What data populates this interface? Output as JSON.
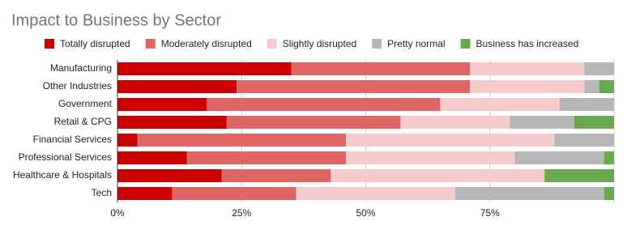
{
  "chart_data": {
    "type": "stacked-barh",
    "title": "Impact to Business by Sector",
    "categories": [
      "Manufacturing",
      "Other Industries",
      "Government",
      "Retail & CPG",
      "Financial Services",
      "Professional Services",
      "Healthcare & Hospitals",
      "Tech"
    ],
    "series": [
      {
        "name": "Totally disrupted",
        "color": "#cc0000",
        "values": [
          35,
          24,
          18,
          22,
          4,
          14,
          21,
          11
        ]
      },
      {
        "name": "Moderately disrupted",
        "color": "#e06666",
        "values": [
          36,
          47,
          47,
          35,
          42,
          32,
          22,
          25
        ]
      },
      {
        "name": "Slightly disrupted",
        "color": "#f4cccc",
        "values": [
          23,
          23,
          24,
          22,
          42,
          34,
          43,
          32
        ]
      },
      {
        "name": "Pretty normal",
        "color": "#b7b7b7",
        "values": [
          6,
          3,
          11,
          13,
          12,
          18,
          0,
          30
        ]
      },
      {
        "name": "Business has increased",
        "color": "#6aa84f",
        "values": [
          0,
          3,
          0,
          8,
          0,
          2,
          14,
          2
        ]
      }
    ],
    "xlim": [
      0,
      100
    ],
    "xticks": [
      {
        "value": 0,
        "label": "0%"
      },
      {
        "value": 25,
        "label": "25%"
      },
      {
        "value": 50,
        "label": "50%"
      },
      {
        "value": 75,
        "label": "75%"
      }
    ],
    "grid": true
  }
}
